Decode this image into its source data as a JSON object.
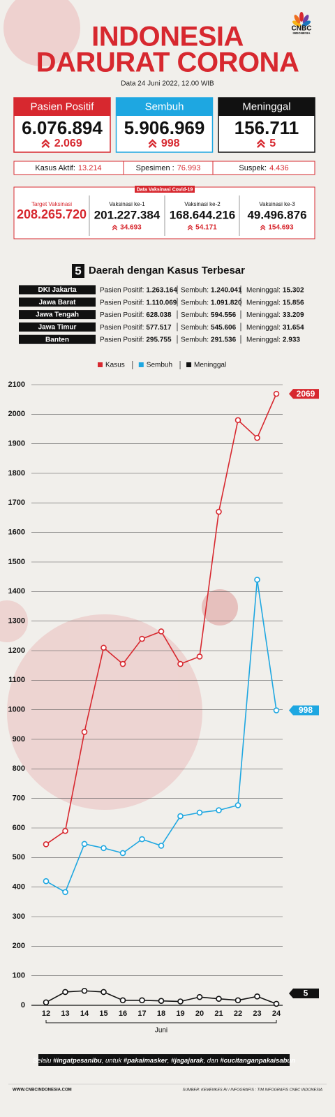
{
  "header": {
    "title_line1": "INDONESIA",
    "title_line2": "DARURAT CORONA",
    "date": "Data 24 Juni 2022, 12.00 WIB",
    "logo": "CNBC",
    "logo_sub": "INDONESIA"
  },
  "stats": [
    {
      "label": "Pasien Positif",
      "value": "6.076.894",
      "change": "2.069",
      "color": "#d7282f"
    },
    {
      "label": "Sembuh",
      "value": "5.906.969",
      "change": "998",
      "color": "#1ea7e1"
    },
    {
      "label": "Meninggal",
      "value": "156.711",
      "change": "5",
      "color": "#111111"
    }
  ],
  "summary": [
    {
      "label": "Kasus Aktif:",
      "value": "13.214"
    },
    {
      "label": "Spesimen :",
      "value": "76.993"
    },
    {
      "label": "Suspek:",
      "value": "4.436"
    }
  ],
  "vaccination": {
    "title": "Data Vaksinasi Covid-19",
    "items": [
      {
        "label": "Target Vaksinasi",
        "value": "208.265.720"
      },
      {
        "label": "Vaksinasi ke-1",
        "value": "201.227.384",
        "change": "34.693"
      },
      {
        "label": "Vaksinasi ke-2",
        "value": "168.644.216",
        "change": "54.171"
      },
      {
        "label": "Vaksinasi ke-3",
        "value": "49.496.876",
        "change": "154.693"
      }
    ]
  },
  "regions": {
    "title_number": "5",
    "title": "Daerah dengan Kasus Terbesar",
    "labels": [
      "Pasien Positif:",
      "Sembuh:",
      "Meninggal:"
    ],
    "rows": [
      {
        "name": "DKI Jakarta",
        "values": [
          "1.263.164",
          "1.240.041",
          "15.302"
        ]
      },
      {
        "name": "Jawa Barat",
        "values": [
          "1.110.069",
          "1.091.820",
          "15.856"
        ]
      },
      {
        "name": "Jawa Tengah",
        "values": [
          "628.038",
          "594.556",
          "33.209"
        ]
      },
      {
        "name": "Jawa Timur",
        "values": [
          "577.517",
          "545.606",
          "31.654"
        ]
      },
      {
        "name": "Banten",
        "values": [
          "295.755",
          "291.536",
          "2.933"
        ]
      }
    ]
  },
  "chart_data": {
    "type": "line",
    "categories": [
      "12",
      "13",
      "14",
      "15",
      "16",
      "17",
      "18",
      "19",
      "20",
      "21",
      "22",
      "23",
      "24"
    ],
    "x_label": "Juni",
    "series": [
      {
        "name": "Kasus",
        "color": "#d7282f",
        "values": [
          545,
          590,
          925,
          1210,
          1155,
          1240,
          1265,
          1155,
          1180,
          1670,
          1980,
          1920,
          2069
        ]
      },
      {
        "name": "Sembuh",
        "color": "#1ea7e1",
        "values": [
          420,
          383,
          546,
          532,
          515,
          562,
          540,
          640,
          652,
          660,
          677,
          1440,
          998
        ]
      },
      {
        "name": "Meninggal",
        "color": "#111111",
        "values": [
          10,
          45,
          49,
          45,
          17,
          17,
          15,
          13,
          28,
          22,
          17,
          30,
          5
        ]
      }
    ],
    "ylim": [
      0,
      2100
    ],
    "yticks": [
      0,
      100,
      200,
      300,
      400,
      500,
      600,
      700,
      800,
      900,
      1000,
      1100,
      1200,
      1300,
      1400,
      1500,
      1600,
      1700,
      1800,
      1900,
      2000,
      2100
    ],
    "grid": true
  },
  "footer": {
    "slogan_parts": [
      "Selalu ",
      "#ingatpesanibu",
      ", untuk ",
      "#pakaimasker",
      ", ",
      "#jagajarak",
      ", dan ",
      "#cucitanganpakaisabun"
    ],
    "website": "WWW.CNBCINDONESIA.COM",
    "source": "SUMBER: KEMENKES RI / INFOGRAFIS : TIM INFOGRAFIS CNBC INDONESIA"
  }
}
